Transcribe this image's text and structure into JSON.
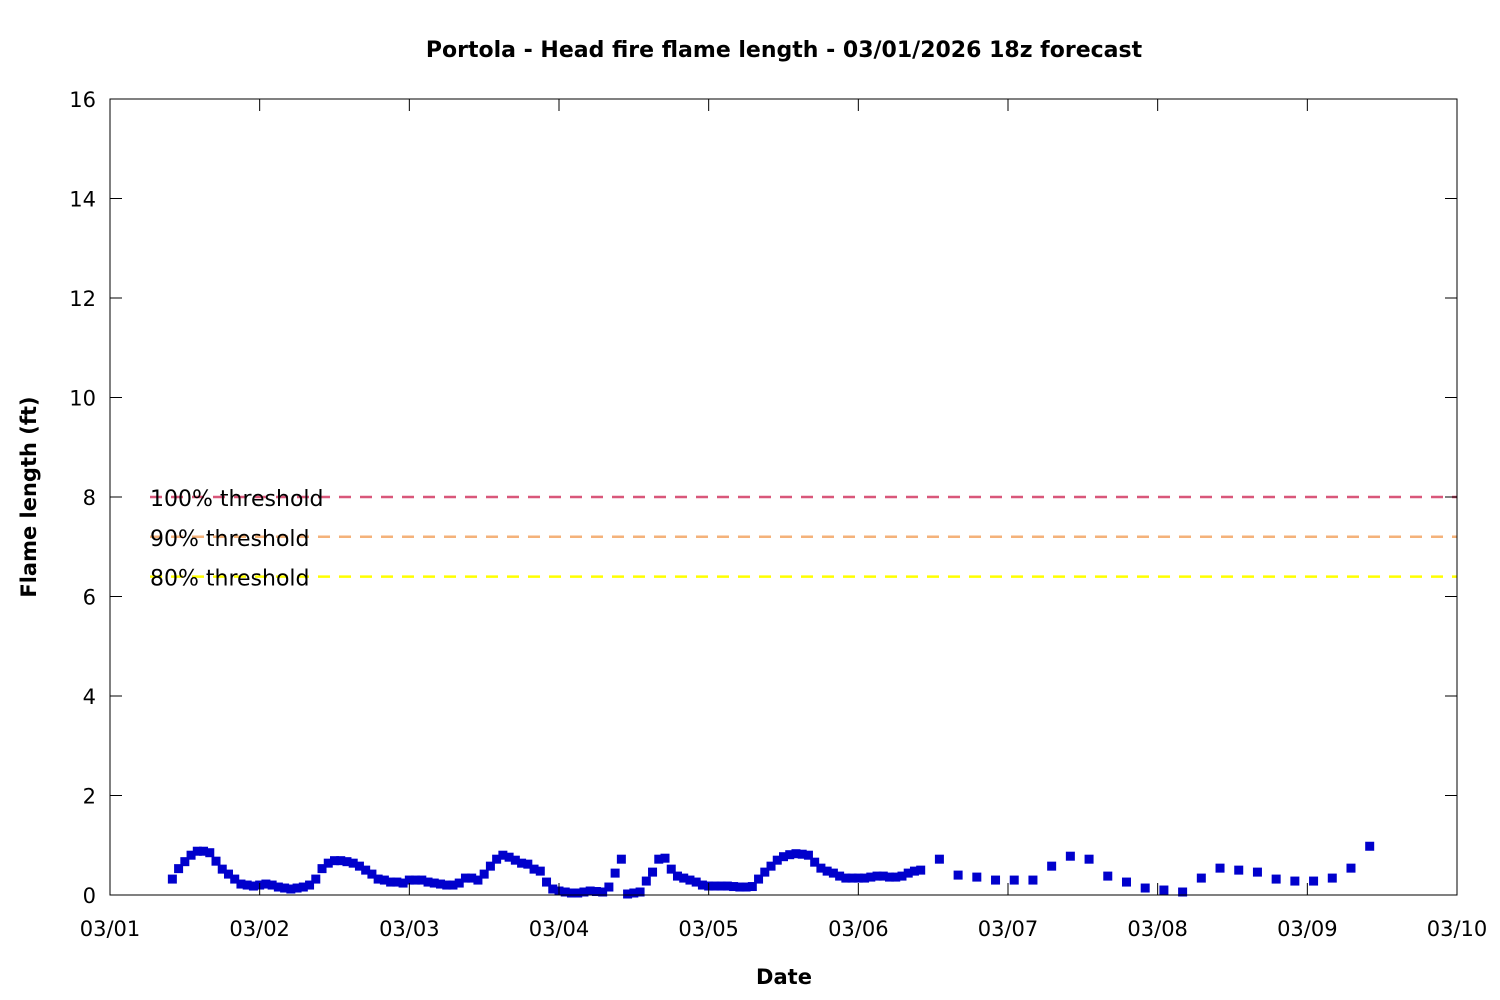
{
  "chart_data": {
    "type": "scatter",
    "title": "Portola - Head fire flame length - 03/01/2026 18z forecast",
    "xlabel": "Date",
    "ylabel": "Flame length (ft)",
    "xlim": [
      "2026-03-01T00:00",
      "2026-03-10T00:00"
    ],
    "ylim": [
      0,
      16
    ],
    "x_ticks": [
      "03/01",
      "03/02",
      "03/03",
      "03/04",
      "03/05",
      "03/06",
      "03/07",
      "03/08",
      "03/09",
      "03/10"
    ],
    "y_ticks": [
      "0",
      "2",
      "4",
      "6",
      "8",
      "10",
      "12",
      "14",
      "16"
    ],
    "grid": false,
    "point_color": "#0000cc",
    "thresholds": [
      {
        "label": "100% threshold",
        "value": 8.0,
        "color": "#d9577a"
      },
      {
        "label": "90% threshold",
        "value": 7.2,
        "color": "#f4b27a"
      },
      {
        "label": "80% threshold",
        "value": 6.4,
        "color": "#ffff00"
      }
    ],
    "series": [
      {
        "x": [
          "2026-03-01T10:00",
          "2026-03-01T11:00",
          "2026-03-01T12:00",
          "2026-03-01T13:00",
          "2026-03-01T14:00",
          "2026-03-01T15:00",
          "2026-03-01T16:00",
          "2026-03-01T17:00",
          "2026-03-01T18:00",
          "2026-03-01T19:00",
          "2026-03-01T20:00",
          "2026-03-01T21:00",
          "2026-03-01T22:00",
          "2026-03-01T23:00",
          "2026-03-02T00:00",
          "2026-03-02T01:00",
          "2026-03-02T02:00",
          "2026-03-02T03:00",
          "2026-03-02T04:00",
          "2026-03-02T05:00",
          "2026-03-02T06:00",
          "2026-03-02T07:00",
          "2026-03-02T08:00",
          "2026-03-02T09:00",
          "2026-03-02T10:00",
          "2026-03-02T11:00",
          "2026-03-02T12:00",
          "2026-03-02T13:00",
          "2026-03-02T14:00",
          "2026-03-02T15:00",
          "2026-03-02T16:00",
          "2026-03-02T17:00",
          "2026-03-02T18:00",
          "2026-03-02T19:00",
          "2026-03-02T20:00",
          "2026-03-02T21:00",
          "2026-03-02T22:00",
          "2026-03-02T23:00",
          "2026-03-03T00:00",
          "2026-03-03T01:00",
          "2026-03-03T02:00",
          "2026-03-03T03:00",
          "2026-03-03T04:00",
          "2026-03-03T05:00",
          "2026-03-03T06:00",
          "2026-03-03T07:00",
          "2026-03-03T08:00",
          "2026-03-03T09:00",
          "2026-03-03T10:00",
          "2026-03-03T11:00",
          "2026-03-03T12:00",
          "2026-03-03T13:00",
          "2026-03-03T14:00",
          "2026-03-03T15:00",
          "2026-03-03T16:00",
          "2026-03-03T17:00",
          "2026-03-03T18:00",
          "2026-03-03T19:00",
          "2026-03-03T20:00",
          "2026-03-03T21:00",
          "2026-03-03T22:00",
          "2026-03-03T23:00",
          "2026-03-04T00:00",
          "2026-03-04T01:00",
          "2026-03-04T02:00",
          "2026-03-04T03:00",
          "2026-03-04T04:00",
          "2026-03-04T05:00",
          "2026-03-04T06:00",
          "2026-03-04T07:00",
          "2026-03-04T08:00",
          "2026-03-04T09:00",
          "2026-03-04T10:00",
          "2026-03-04T11:00",
          "2026-03-04T12:00",
          "2026-03-04T13:00",
          "2026-03-04T14:00",
          "2026-03-04T15:00",
          "2026-03-04T16:00",
          "2026-03-04T17:00",
          "2026-03-04T18:00",
          "2026-03-04T19:00",
          "2026-03-04T20:00",
          "2026-03-04T21:00",
          "2026-03-04T22:00",
          "2026-03-04T23:00",
          "2026-03-05T00:00",
          "2026-03-05T01:00",
          "2026-03-05T02:00",
          "2026-03-05T03:00",
          "2026-03-05T04:00",
          "2026-03-05T05:00",
          "2026-03-05T06:00",
          "2026-03-05T07:00",
          "2026-03-05T08:00",
          "2026-03-05T09:00",
          "2026-03-05T10:00",
          "2026-03-05T11:00",
          "2026-03-05T12:00",
          "2026-03-05T13:00",
          "2026-03-05T14:00",
          "2026-03-05T15:00",
          "2026-03-05T16:00",
          "2026-03-05T17:00",
          "2026-03-05T18:00",
          "2026-03-05T19:00",
          "2026-03-05T20:00",
          "2026-03-05T21:00",
          "2026-03-05T22:00",
          "2026-03-05T23:00",
          "2026-03-06T00:00",
          "2026-03-06T01:00",
          "2026-03-06T02:00",
          "2026-03-06T03:00",
          "2026-03-06T04:00",
          "2026-03-06T05:00",
          "2026-03-06T06:00",
          "2026-03-06T07:00",
          "2026-03-06T08:00",
          "2026-03-06T09:00",
          "2026-03-06T10:00",
          "2026-03-06T13:00",
          "2026-03-06T16:00",
          "2026-03-06T19:00",
          "2026-03-06T22:00",
          "2026-03-07T01:00",
          "2026-03-07T04:00",
          "2026-03-07T07:00",
          "2026-03-07T10:00",
          "2026-03-07T13:00",
          "2026-03-07T16:00",
          "2026-03-07T19:00",
          "2026-03-07T22:00",
          "2026-03-08T01:00",
          "2026-03-08T04:00",
          "2026-03-08T07:00",
          "2026-03-08T10:00",
          "2026-03-08T13:00",
          "2026-03-08T16:00",
          "2026-03-08T19:00",
          "2026-03-08T22:00",
          "2026-03-09T01:00",
          "2026-03-09T04:00",
          "2026-03-09T07:00",
          "2026-03-09T10:00"
        ],
        "y": [
          0.32,
          0.53,
          0.67,
          0.8,
          0.88,
          0.88,
          0.85,
          0.68,
          0.52,
          0.42,
          0.32,
          0.22,
          0.2,
          0.18,
          0.2,
          0.22,
          0.2,
          0.16,
          0.14,
          0.12,
          0.14,
          0.16,
          0.2,
          0.32,
          0.53,
          0.64,
          0.69,
          0.69,
          0.67,
          0.64,
          0.58,
          0.5,
          0.42,
          0.32,
          0.3,
          0.26,
          0.26,
          0.24,
          0.3,
          0.3,
          0.3,
          0.26,
          0.24,
          0.22,
          0.2,
          0.2,
          0.24,
          0.34,
          0.34,
          0.3,
          0.42,
          0.58,
          0.72,
          0.8,
          0.76,
          0.7,
          0.64,
          0.62,
          0.52,
          0.48,
          0.26,
          0.12,
          0.08,
          0.06,
          0.04,
          0.04,
          0.06,
          0.08,
          0.07,
          0.06,
          0.16,
          0.44,
          0.72,
          0.02,
          0.04,
          0.06,
          0.28,
          0.46,
          0.72,
          0.74,
          0.52,
          0.38,
          0.34,
          0.3,
          0.26,
          0.2,
          0.18,
          0.18,
          0.18,
          0.18,
          0.17,
          0.16,
          0.16,
          0.17,
          0.32,
          0.46,
          0.58,
          0.7,
          0.77,
          0.81,
          0.83,
          0.82,
          0.8,
          0.66,
          0.54,
          0.48,
          0.44,
          0.38,
          0.34,
          0.34,
          0.34,
          0.34,
          0.36,
          0.38,
          0.38,
          0.36,
          0.36,
          0.38,
          0.44,
          0.48,
          0.5,
          0.72,
          0.4,
          0.36,
          0.3,
          0.3,
          0.3,
          0.58,
          0.78,
          0.72,
          0.38,
          0.26,
          0.14,
          0.1,
          0.06,
          0.34,
          0.54,
          0.5,
          0.46,
          0.32,
          0.28,
          0.28,
          0.34,
          0.54,
          0.98
        ]
      }
    ]
  }
}
